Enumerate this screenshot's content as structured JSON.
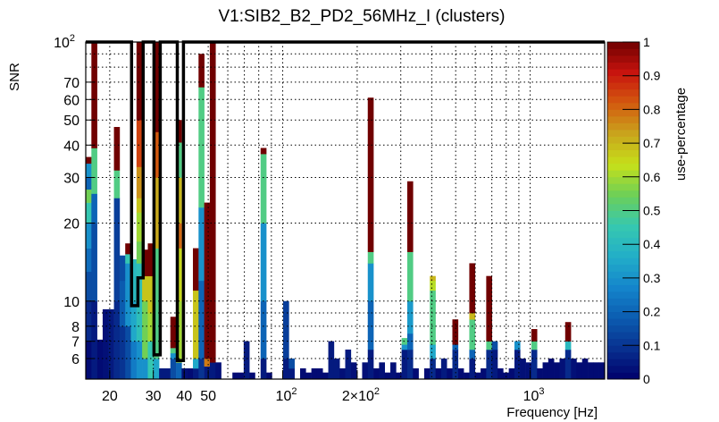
{
  "chart_data": {
    "type": "heatmap",
    "title": "V1:SIB2_B2_PD2_56MHz_I (clusters)",
    "xlabel": "Frequency [Hz]",
    "ylabel": "SNR",
    "zlabel": "use-percentage",
    "xscale": "log",
    "yscale": "log",
    "xlim": [
      16,
      2000
    ],
    "ylim": [
      5,
      100
    ],
    "zlim": [
      0,
      1
    ],
    "n_bins_x": 92,
    "grid": true,
    "x_ticks": [
      {
        "value": 20,
        "label": "20"
      },
      {
        "value": 30,
        "label": "30"
      },
      {
        "value": 40,
        "label": "40"
      },
      {
        "value": 50,
        "label": "50"
      },
      {
        "value": 100,
        "label": "10",
        "exp": "2"
      },
      {
        "value": 200,
        "label": "2×10",
        "exp": "2"
      },
      {
        "value": 1000,
        "label": "10",
        "exp": "3"
      }
    ],
    "x_grid": [
      20,
      30,
      40,
      50,
      60,
      70,
      80,
      90,
      100,
      200,
      300,
      400,
      500,
      600,
      700,
      800,
      900,
      1000,
      2000
    ],
    "y_ticks": [
      {
        "value": 100,
        "label": "10",
        "exp": "2"
      },
      {
        "value": 70,
        "label": "70"
      },
      {
        "value": 60,
        "label": "60"
      },
      {
        "value": 50,
        "label": "50"
      },
      {
        "value": 40,
        "label": "40"
      },
      {
        "value": 30,
        "label": "30"
      },
      {
        "value": 20,
        "label": "20"
      },
      {
        "value": 10,
        "label": "10"
      },
      {
        "value": 8,
        "label": "8"
      },
      {
        "value": 7,
        "label": "7"
      },
      {
        "value": 6,
        "label": "6"
      }
    ],
    "y_grid": [
      6,
      7,
      8,
      9,
      10,
      20,
      30,
      40,
      50,
      60,
      70,
      80,
      90
    ],
    "z_ticks": [
      "0",
      "0.1",
      "0.2",
      "0.3",
      "0.4",
      "0.5",
      "0.6",
      "0.7",
      "0.8",
      "0.9",
      "1"
    ],
    "palette": [
      "#00006b",
      "#08308f",
      "#0b5cb0",
      "#1485cc",
      "#22aec8",
      "#36c8b0",
      "#6ccf58",
      "#c6e01a",
      "#c9a51c",
      "#d35a0f",
      "#c8140e",
      "#700000"
    ],
    "columns": [
      {
        "i": 0,
        "s": [
          [
            7,
            0.02
          ],
          [
            10,
            0.08
          ],
          [
            13,
            0.15
          ],
          [
            16,
            0.22
          ],
          [
            20,
            0.3
          ],
          [
            24,
            0.45
          ],
          [
            27,
            0.55
          ],
          [
            30,
            0.2
          ],
          [
            34,
            0.3
          ],
          [
            36,
            1
          ]
        ]
      },
      {
        "i": 1,
        "s": [
          [
            10,
            0.05
          ],
          [
            20,
            0.15
          ],
          [
            26,
            0.2
          ],
          [
            39,
            0.5
          ],
          [
            100,
            1
          ]
        ]
      },
      {
        "i": 2,
        "s": [
          [
            7.1,
            0.02
          ]
        ]
      },
      {
        "i": 3,
        "s": [
          [
            9.3,
            0.03
          ]
        ]
      },
      {
        "i": 4,
        "s": [
          [
            9.3,
            0.05
          ]
        ]
      },
      {
        "i": 5,
        "s": [
          [
            10,
            0.08
          ],
          [
            25,
            0.12
          ],
          [
            32,
            0.5
          ],
          [
            47,
            1
          ]
        ]
      },
      {
        "i": 6,
        "s": [
          [
            8,
            0.1
          ],
          [
            12,
            0.18
          ],
          [
            15,
            0.15
          ]
        ]
      },
      {
        "i": 7,
        "s": [
          [
            8,
            0.15
          ],
          [
            14,
            0.3
          ],
          [
            15.2,
            0.45
          ],
          [
            16.7,
            1
          ]
        ]
      },
      {
        "i": 8,
        "s": [
          [
            7,
            0.25
          ],
          [
            10,
            0.35
          ],
          [
            14.5,
            0.4
          ]
        ]
      },
      {
        "i": 9,
        "s": [
          [
            7,
            0.3
          ],
          [
            14,
            0.42
          ],
          [
            17,
            0.55
          ],
          [
            22,
            0.6
          ],
          [
            25,
            0.68
          ],
          [
            33,
            0.75
          ],
          [
            50,
            0.85
          ],
          [
            100,
            1
          ]
        ]
      },
      {
        "i": 10,
        "s": [
          [
            6,
            0.3
          ],
          [
            10,
            0.55
          ],
          [
            12.5,
            0.68
          ],
          [
            15.8,
            1
          ]
        ]
      },
      {
        "i": 11,
        "s": [
          [
            7,
            0.45
          ],
          [
            9,
            0.6
          ],
          [
            12.5,
            0.68
          ],
          [
            16.7,
            1
          ]
        ]
      },
      {
        "i": 12,
        "s": [
          [
            6,
            0.35
          ],
          [
            16,
            0.5
          ],
          [
            30,
            0.72
          ],
          [
            45,
            0.82
          ],
          [
            100,
            1
          ]
        ]
      },
      {
        "i": 13,
        "s": [
          [
            5.5,
            0.05
          ]
        ]
      },
      {
        "i": 14,
        "s": [
          [
            5.5,
            0.05
          ]
        ]
      },
      {
        "i": 15,
        "s": [
          [
            6,
            0.15
          ],
          [
            6.3,
            0.3
          ],
          [
            6.6,
            0.5
          ],
          [
            8.7,
            1
          ]
        ]
      },
      {
        "i": 16,
        "s": [
          [
            5.8,
            0.2
          ],
          [
            10,
            0.6
          ],
          [
            16,
            0.65
          ],
          [
            20,
            0.8
          ],
          [
            30,
            0.7
          ],
          [
            41,
            0.5
          ],
          [
            50,
            1
          ]
        ]
      },
      {
        "i": 17,
        "s": [
          [
            5.5,
            0.03
          ]
        ]
      },
      {
        "i": 18,
        "s": [
          [
            5.5,
            0.02
          ]
        ]
      },
      {
        "i": 19,
        "s": [
          [
            5.5,
            0.05
          ],
          [
            6,
            0.35
          ],
          [
            11,
            0.68
          ],
          [
            16,
            1
          ]
        ]
      },
      {
        "i": 20,
        "s": [
          [
            6,
            0.1
          ],
          [
            12,
            0.2
          ],
          [
            23,
            0.3
          ],
          [
            67,
            0.5
          ],
          [
            90,
            1
          ]
        ]
      },
      {
        "i": 21,
        "s": [
          [
            5.6,
            0.05
          ],
          [
            6,
            0.78
          ],
          [
            24,
            1
          ]
        ]
      },
      {
        "i": 22,
        "s": [
          [
            5.8,
            0.05
          ],
          [
            100,
            1
          ]
        ]
      },
      {
        "i": 23,
        "s": [
          [
            5.8,
            0.03
          ]
        ]
      },
      {
        "i": 26,
        "s": [
          [
            5.3,
            0.02
          ]
        ]
      },
      {
        "i": 27,
        "s": [
          [
            5.3,
            0.02
          ]
        ]
      },
      {
        "i": 28,
        "s": [
          [
            7,
            0.05
          ]
        ]
      },
      {
        "i": 29,
        "s": [
          [
            5.3,
            0.02
          ]
        ]
      },
      {
        "i": 31,
        "s": [
          [
            6,
            0.05
          ],
          [
            10,
            0.2
          ],
          [
            20,
            0.3
          ],
          [
            37,
            0.5
          ],
          [
            39,
            1
          ]
        ]
      },
      {
        "i": 32,
        "s": [
          [
            5.3,
            0.02
          ]
        ]
      },
      {
        "i": 35,
        "s": [
          [
            6,
            0.05
          ],
          [
            10,
            0.12
          ]
        ]
      },
      {
        "i": 36,
        "s": [
          [
            5.5,
            0.05
          ],
          [
            6,
            0.15
          ]
        ]
      },
      {
        "i": 38,
        "s": [
          [
            5.5,
            0.02
          ]
        ]
      },
      {
        "i": 39,
        "s": [
          [
            5.3,
            0.02
          ]
        ]
      },
      {
        "i": 40,
        "s": [
          [
            5.5,
            0.02
          ]
        ]
      },
      {
        "i": 41,
        "s": [
          [
            5.5,
            0.02
          ]
        ]
      },
      {
        "i": 42,
        "s": [
          [
            5.3,
            0.02
          ]
        ]
      },
      {
        "i": 43,
        "s": [
          [
            7,
            0.05
          ]
        ]
      },
      {
        "i": 44,
        "s": [
          [
            6,
            0.05
          ]
        ]
      },
      {
        "i": 45,
        "s": [
          [
            5.5,
            0.03
          ]
        ]
      },
      {
        "i": 46,
        "s": [
          [
            6.5,
            0.05
          ]
        ]
      },
      {
        "i": 47,
        "s": [
          [
            5.8,
            0.03
          ]
        ]
      },
      {
        "i": 49,
        "s": [
          [
            5.8,
            0.03
          ]
        ]
      },
      {
        "i": 50,
        "s": [
          [
            6.5,
            0.05
          ],
          [
            10,
            0.2
          ],
          [
            14,
            0.3
          ],
          [
            15.5,
            0.5
          ],
          [
            61,
            1
          ]
        ]
      },
      {
        "i": 51,
        "s": [
          [
            5.5,
            0.02
          ]
        ]
      },
      {
        "i": 52,
        "s": [
          [
            5.8,
            0.03
          ]
        ]
      },
      {
        "i": 53,
        "s": [
          [
            5.3,
            0.02
          ]
        ]
      },
      {
        "i": 54,
        "s": [
          [
            5.8,
            0.03
          ]
        ]
      },
      {
        "i": 55,
        "s": [
          [
            5.3,
            0.02
          ]
        ]
      },
      {
        "i": 56,
        "s": [
          [
            6.5,
            0.05
          ],
          [
            6.8,
            0.3
          ],
          [
            7.2,
            0.5
          ]
        ]
      },
      {
        "i": 57,
        "s": [
          [
            6.5,
            0.08
          ],
          [
            7.5,
            0.2
          ],
          [
            10,
            0.32
          ],
          [
            15.5,
            0.5
          ],
          [
            29,
            1
          ]
        ]
      },
      {
        "i": 58,
        "s": [
          [
            5.5,
            0.02
          ]
        ]
      },
      {
        "i": 60,
        "s": [
          [
            5.5,
            0.02
          ]
        ]
      },
      {
        "i": 61,
        "s": [
          [
            6,
            0.08
          ],
          [
            6.8,
            0.35
          ],
          [
            11,
            0.5
          ],
          [
            12,
            0.62
          ],
          [
            12.5,
            0.7
          ]
        ]
      },
      {
        "i": 62,
        "s": [
          [
            5.5,
            0.02
          ]
        ]
      },
      {
        "i": 63,
        "s": [
          [
            6,
            0.05
          ]
        ]
      },
      {
        "i": 64,
        "s": [
          [
            5.5,
            0.02
          ]
        ]
      },
      {
        "i": 65,
        "s": [
          [
            6.5,
            0.08
          ],
          [
            6.8,
            0.2
          ],
          [
            8.5,
            1
          ]
        ]
      },
      {
        "i": 66,
        "s": [
          [
            5.5,
            0.02
          ]
        ]
      },
      {
        "i": 67,
        "s": [
          [
            5.3,
            0.02
          ]
        ]
      },
      {
        "i": 68,
        "s": [
          [
            6,
            0.05
          ],
          [
            6.5,
            0.2
          ],
          [
            8.5,
            0.5
          ],
          [
            9,
            0.7
          ],
          [
            14,
            1
          ]
        ]
      },
      {
        "i": 69,
        "s": [
          [
            5.3,
            0.02
          ]
        ]
      },
      {
        "i": 70,
        "s": [
          [
            5.5,
            0.02
          ]
        ]
      },
      {
        "i": 71,
        "s": [
          [
            6.5,
            0.08
          ],
          [
            7,
            0.5
          ],
          [
            12.5,
            1
          ]
        ]
      },
      {
        "i": 72,
        "s": [
          [
            6.5,
            0.05
          ],
          [
            7,
            0.15
          ]
        ]
      },
      {
        "i": 73,
        "s": [
          [
            5.5,
            0.02
          ]
        ]
      },
      {
        "i": 74,
        "s": [
          [
            5.3,
            0.02
          ]
        ]
      },
      {
        "i": 75,
        "s": [
          [
            5.5,
            0.02
          ]
        ]
      },
      {
        "i": 76,
        "s": [
          [
            6.5,
            0.05
          ],
          [
            7,
            0.3
          ]
        ]
      },
      {
        "i": 77,
        "s": [
          [
            6,
            0.03
          ]
        ]
      },
      {
        "i": 78,
        "s": [
          [
            5.8,
            0.03
          ]
        ]
      },
      {
        "i": 79,
        "s": [
          [
            6.5,
            0.08
          ],
          [
            7,
            0.5
          ],
          [
            7.8,
            1
          ]
        ]
      },
      {
        "i": 80,
        "s": [
          [
            5.5,
            0.02
          ]
        ]
      },
      {
        "i": 81,
        "s": [
          [
            5.8,
            0.02
          ]
        ]
      },
      {
        "i": 82,
        "s": [
          [
            6,
            0.02
          ]
        ]
      },
      {
        "i": 83,
        "s": [
          [
            5.8,
            0.02
          ]
        ]
      },
      {
        "i": 84,
        "s": [
          [
            6,
            0.03
          ]
        ]
      },
      {
        "i": 85,
        "s": [
          [
            6.5,
            0.08
          ],
          [
            7,
            0.4
          ],
          [
            8.3,
            1
          ]
        ]
      },
      {
        "i": 86,
        "s": [
          [
            6,
            0.03
          ]
        ]
      },
      {
        "i": 87,
        "s": [
          [
            5.8,
            0.02
          ]
        ]
      },
      {
        "i": 88,
        "s": [
          [
            6,
            0.02
          ]
        ]
      },
      {
        "i": 89,
        "s": [
          [
            5.8,
            0.02
          ]
        ]
      },
      {
        "i": 90,
        "s": [
          [
            5.8,
            0.02
          ]
        ]
      },
      {
        "i": 91,
        "s": [
          [
            5.8,
            0.02
          ]
        ]
      }
    ],
    "contour": [
      [
        16,
        100
      ],
      [
        24.5,
        100
      ],
      [
        24.5,
        9.6
      ],
      [
        26,
        9.6
      ],
      [
        26,
        12.3
      ],
      [
        27.3,
        12.3
      ],
      [
        27.3,
        100
      ],
      [
        30.2,
        100
      ],
      [
        30.2,
        6.2
      ],
      [
        32,
        6.2
      ],
      [
        32,
        100
      ],
      [
        37.5,
        100
      ],
      [
        37.5,
        5.9
      ],
      [
        39.7,
        5.9
      ],
      [
        39.7,
        100
      ],
      [
        2000,
        100
      ]
    ]
  }
}
